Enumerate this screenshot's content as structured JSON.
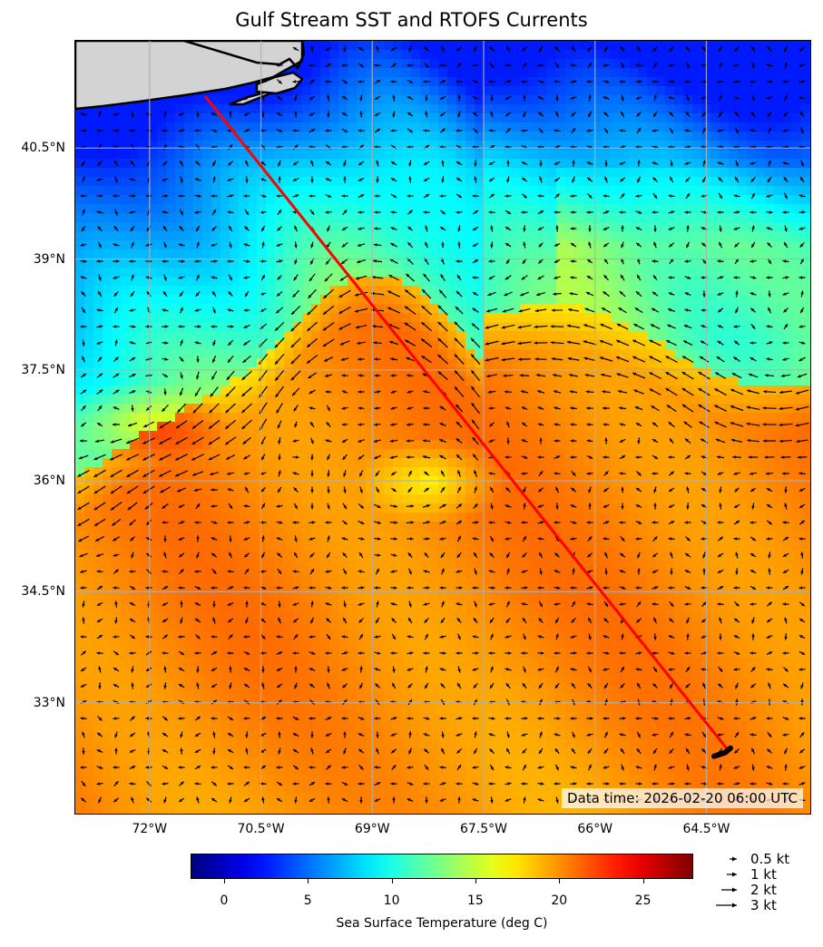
{
  "title": "Gulf Stream SST and RTOFS Currents",
  "map": {
    "extent": {
      "lon_min": -73.0,
      "lon_max": -63.1,
      "lat_min": 31.5,
      "lat_max": 41.95
    },
    "lat_ticks": [
      {
        "value": 40.5,
        "label": "40.5°N"
      },
      {
        "value": 39.0,
        "label": "39°N"
      },
      {
        "value": 37.5,
        "label": "37.5°N"
      },
      {
        "value": 36.0,
        "label": "36°N"
      },
      {
        "value": 34.5,
        "label": "34.5°N"
      },
      {
        "value": 33.0,
        "label": "33°N"
      }
    ],
    "lon_ticks": [
      {
        "value": -72.0,
        "label": "72°W"
      },
      {
        "value": -70.5,
        "label": "70.5°W"
      },
      {
        "value": -69.0,
        "label": "69°W"
      },
      {
        "value": -67.5,
        "label": "67.5°W"
      },
      {
        "value": -66.0,
        "label": "66°W"
      },
      {
        "value": -64.5,
        "label": "64.5°W"
      }
    ],
    "grid": true,
    "land_color": "#d3d3d3",
    "route": {
      "color": "#ff0000",
      "points": [
        {
          "lon": -71.25,
          "lat": 41.2
        },
        {
          "lon": -64.2,
          "lat": 32.35
        }
      ],
      "end_marker_color": "#000000"
    },
    "data_time_text": "Data time: 2026-02-20 06:00 UTC"
  },
  "colorbar": {
    "title": "Sea Surface Temperature (deg C)",
    "range": [
      -2,
      28
    ],
    "colormap": "jet",
    "ticks": [
      {
        "value": 0,
        "label": "0"
      },
      {
        "value": 5,
        "label": "5"
      },
      {
        "value": 10,
        "label": "10"
      },
      {
        "value": 15,
        "label": "15"
      },
      {
        "value": 20,
        "label": "20"
      },
      {
        "value": 25,
        "label": "25"
      }
    ]
  },
  "current_key": {
    "items": [
      {
        "speed_kt": 0.5,
        "label": "0.5 kt"
      },
      {
        "speed_kt": 1,
        "label": "1 kt"
      },
      {
        "speed_kt": 2,
        "label": "2 kt"
      },
      {
        "speed_kt": 3,
        "label": "3 kt"
      }
    ]
  }
}
